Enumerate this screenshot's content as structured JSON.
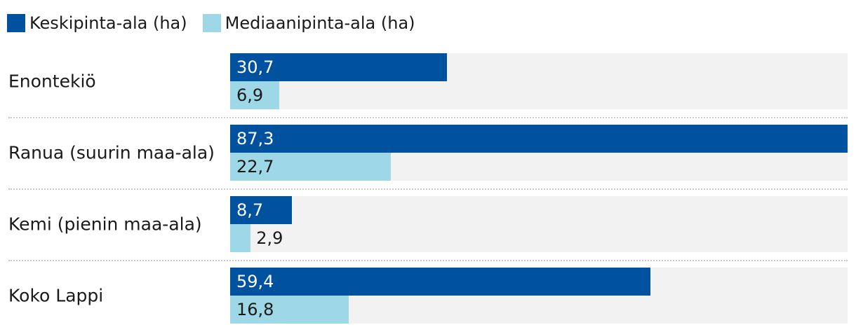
{
  "legend": [
    {
      "label": "Keskipinta-ala (ha)",
      "color": "#00519e"
    },
    {
      "label": "Mediaanipinta-ala (ha)",
      "color": "#9ed7e6"
    }
  ],
  "chart_data": {
    "type": "bar",
    "orientation": "horizontal",
    "categories": [
      "Enontekiö",
      "Ranua (suurin maa-ala)",
      "Kemi (pienin maa-ala)",
      "Koko Lappi"
    ],
    "series": [
      {
        "name": "Keskipinta-ala (ha)",
        "color": "#00519e",
        "values": [
          30.7,
          87.3,
          8.7,
          59.4
        ],
        "labels": [
          "30,7",
          "87,3",
          "8,7",
          "59,4"
        ]
      },
      {
        "name": "Mediaanipinta-ala (ha)",
        "color": "#9ed7e6",
        "values": [
          6.9,
          22.7,
          2.9,
          16.8
        ],
        "labels": [
          "6,9",
          "22,7",
          "2,9",
          "16,8"
        ]
      }
    ],
    "xlim": [
      0,
      87.3
    ],
    "grid": false,
    "legend_position": "top-left",
    "value_labels": "inside-bar-start"
  }
}
